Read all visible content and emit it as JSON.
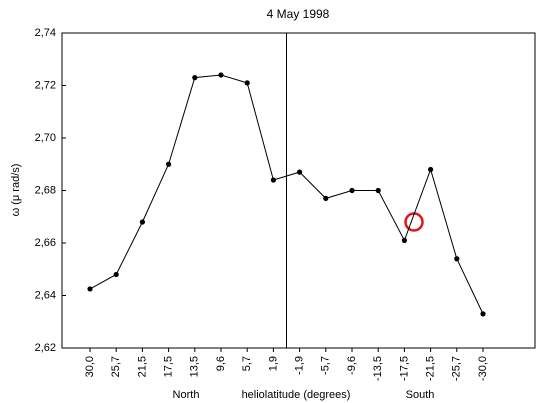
{
  "chart_data": {
    "type": "line",
    "title": "4 May 1998",
    "ylabel": "ω (μ rad/s)",
    "xlabel": "heliolatitude (degrees)",
    "annotations": [
      "North",
      "South"
    ],
    "categories": [
      "30,0",
      "25,7",
      "21,5",
      "17,5",
      "13,5",
      "9,6",
      "5,7",
      "1,9",
      "-1,9",
      "-5,7",
      "-9,6",
      "-13,5",
      "-17,5",
      "-21,5",
      "-25,7",
      "-30,0"
    ],
    "series": [
      {
        "name": "ω",
        "color": "#000000",
        "values": [
          2.6425,
          2.648,
          2.668,
          2.69,
          2.723,
          2.724,
          2.721,
          2.684,
          2.687,
          2.677,
          2.68,
          2.68,
          2.661,
          2.688,
          2.654,
          2.633
        ]
      }
    ],
    "ylim": [
      2.62,
      2.74
    ],
    "yticks": [
      {
        "value": 2.62,
        "label": "2,62"
      },
      {
        "value": 2.64,
        "label": "2,64"
      },
      {
        "value": 2.66,
        "label": "2,66"
      },
      {
        "value": 2.68,
        "label": "2,68"
      },
      {
        "value": 2.7,
        "label": "2,70"
      },
      {
        "value": 2.72,
        "label": "2,72"
      },
      {
        "value": 2.74,
        "label": "2,74"
      }
    ],
    "grid": false
  }
}
